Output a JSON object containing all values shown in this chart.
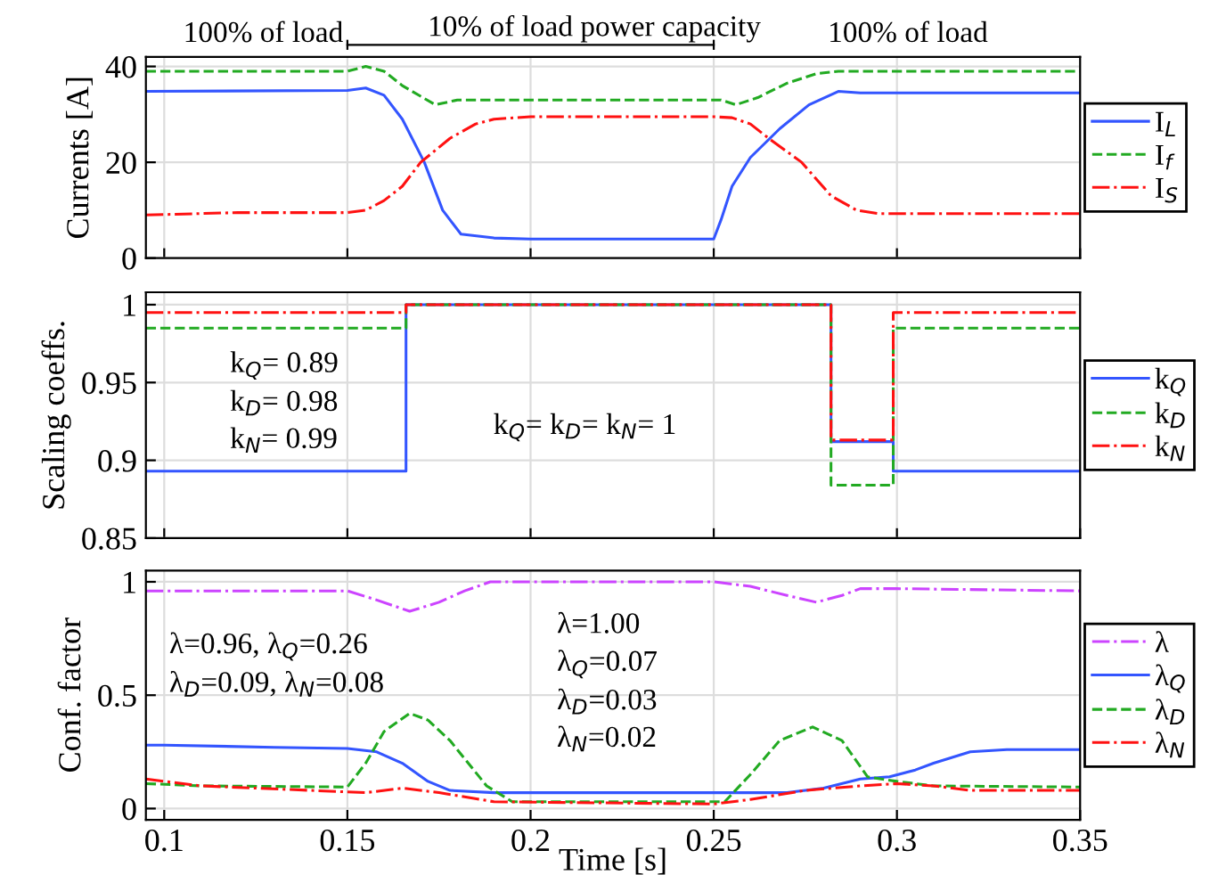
{
  "chart_data": [
    {
      "type": "line",
      "ylabel": "Currents [A]",
      "xlim": [
        0.095,
        0.35
      ],
      "ylim": [
        0,
        42
      ],
      "xticks": [
        0.1,
        0.15,
        0.2,
        0.25,
        0.3,
        0.35
      ],
      "yticks": [
        0,
        20,
        40
      ],
      "grid": true,
      "legend": "right",
      "tick_labels": "y",
      "annotations": [
        "100% of load",
        "10% of load power capacity",
        "100% of load"
      ],
      "series": [
        {
          "name": "I$_{L}$",
          "color": "#3355ff",
          "line_style": "solid",
          "x": [
            0.095,
            0.15,
            0.155,
            0.16,
            0.165,
            0.171,
            0.176,
            0.181,
            0.19,
            0.2,
            0.25,
            0.252,
            0.255,
            0.26,
            0.268,
            0.276,
            0.284,
            0.29,
            0.35
          ],
          "values": [
            34.8,
            35,
            35.5,
            34,
            29,
            20,
            10,
            5,
            4.2,
            4,
            4,
            8,
            15,
            21,
            27,
            32,
            34.8,
            34.5,
            34.5
          ]
        },
        {
          "name": "I$_{f}$",
          "color": "#22aa22",
          "line_style": "dashed",
          "x": [
            0.095,
            0.15,
            0.155,
            0.16,
            0.165,
            0.174,
            0.18,
            0.2,
            0.25,
            0.252,
            0.256,
            0.262,
            0.27,
            0.278,
            0.284,
            0.35
          ],
          "values": [
            39,
            39,
            40,
            39,
            36,
            32,
            33,
            33,
            33,
            33,
            32,
            33.5,
            36.5,
            38.5,
            39,
            39
          ]
        },
        {
          "name": "I$_{S}$",
          "color": "#ff1111",
          "line_style": "dashdot",
          "x": [
            0.095,
            0.12,
            0.15,
            0.155,
            0.16,
            0.165,
            0.17,
            0.178,
            0.185,
            0.19,
            0.2,
            0.25,
            0.255,
            0.26,
            0.265,
            0.274,
            0.282,
            0.289,
            0.295,
            0.35
          ],
          "values": [
            9,
            9.5,
            9.5,
            10,
            12,
            15,
            20,
            25,
            28,
            29,
            29.5,
            29.5,
            29.3,
            28,
            25,
            20,
            13,
            10,
            9.3,
            9.3
          ]
        }
      ]
    },
    {
      "type": "step",
      "ylabel": "Scaling coeffs.",
      "xlim": [
        0.095,
        0.35
      ],
      "ylim": [
        0.85,
        1.008
      ],
      "xticks": [
        0.1,
        0.15,
        0.2,
        0.25,
        0.3,
        0.35
      ],
      "yticks": [
        0.85,
        0.9,
        0.95,
        1
      ],
      "grid": true,
      "legend": "right",
      "tick_labels": "y",
      "annotations": [
        "k$_{Q}$= 0.89\nk$_{D}$= 0.98\nk$_{N}$= 0.99",
        "k$_{Q}$= k$_{D}$= k$_{N}$= 1"
      ],
      "series": [
        {
          "name": "k$_{Q}$",
          "color": "#3355ff",
          "line_style": "solid",
          "x": [
            0.095,
            0.166,
            0.282,
            0.299,
            0.35
          ],
          "values": [
            0.893,
            1,
            0.912,
            0.893,
            0.893
          ]
        },
        {
          "name": "k$_{D}$",
          "color": "#22aa22",
          "line_style": "dashed",
          "x": [
            0.095,
            0.166,
            0.282,
            0.299,
            0.35
          ],
          "values": [
            0.985,
            1,
            0.884,
            0.985,
            0.985
          ]
        },
        {
          "name": "k$_{N}$",
          "color": "#ff1111",
          "line_style": "dashdot",
          "x": [
            0.095,
            0.166,
            0.282,
            0.299,
            0.35
          ],
          "values": [
            0.995,
            1,
            0.913,
            0.995,
            0.995
          ]
        }
      ]
    },
    {
      "type": "line",
      "ylabel": "Conf. factor",
      "xlabel": "Time [s]",
      "xlim": [
        0.095,
        0.35
      ],
      "ylim": [
        -0.05,
        1.05
      ],
      "xticks": [
        0.1,
        0.15,
        0.2,
        0.25,
        0.3,
        0.35
      ],
      "yticks": [
        0,
        0.5,
        1
      ],
      "grid": true,
      "legend": "right",
      "annotations": [
        "λ=0.96, λ$_{Q}$=0.26\nλ$_{D}$=0.09, λ$_{N}$=0.08",
        "λ=1.00\nλ$_{Q}$=0.07\nλ$_{D}$=0.03\nλ$_{N}$=0.02"
      ],
      "series": [
        {
          "name": "λ",
          "color": "#cc44ff",
          "line_style": "dashdot",
          "x": [
            0.095,
            0.15,
            0.158,
            0.167,
            0.175,
            0.182,
            0.189,
            0.2,
            0.25,
            0.26,
            0.27,
            0.278,
            0.285,
            0.29,
            0.3,
            0.35
          ],
          "values": [
            0.96,
            0.96,
            0.92,
            0.87,
            0.91,
            0.96,
            1,
            1,
            1,
            0.98,
            0.94,
            0.91,
            0.94,
            0.97,
            0.97,
            0.96
          ]
        },
        {
          "name": "λ$_{Q}$",
          "color": "#3355ff",
          "line_style": "solid",
          "x": [
            0.095,
            0.1,
            0.13,
            0.15,
            0.158,
            0.165,
            0.172,
            0.178,
            0.19,
            0.27,
            0.28,
            0.29,
            0.298,
            0.305,
            0.31,
            0.32,
            0.33,
            0.35
          ],
          "values": [
            0.28,
            0.28,
            0.27,
            0.265,
            0.25,
            0.2,
            0.12,
            0.08,
            0.07,
            0.07,
            0.09,
            0.13,
            0.14,
            0.17,
            0.2,
            0.25,
            0.26,
            0.26
          ]
        },
        {
          "name": "λ$_{D}$",
          "color": "#22aa22",
          "line_style": "dashed",
          "x": [
            0.095,
            0.11,
            0.15,
            0.155,
            0.16,
            0.167,
            0.172,
            0.178,
            0.188,
            0.195,
            0.253,
            0.26,
            0.268,
            0.277,
            0.285,
            0.292,
            0.3,
            0.31,
            0.35
          ],
          "values": [
            0.11,
            0.1,
            0.095,
            0.2,
            0.34,
            0.42,
            0.39,
            0.3,
            0.1,
            0.03,
            0.03,
            0.15,
            0.3,
            0.36,
            0.3,
            0.14,
            0.12,
            0.1,
            0.095
          ]
        },
        {
          "name": "λ$_{N}$",
          "color": "#ff1111",
          "line_style": "dashdot",
          "x": [
            0.095,
            0.11,
            0.14,
            0.155,
            0.165,
            0.175,
            0.19,
            0.25,
            0.26,
            0.275,
            0.29,
            0.3,
            0.31,
            0.32,
            0.35
          ],
          "values": [
            0.13,
            0.1,
            0.08,
            0.07,
            0.09,
            0.07,
            0.03,
            0.02,
            0.04,
            0.08,
            0.1,
            0.11,
            0.1,
            0.08,
            0.08
          ]
        }
      ]
    }
  ]
}
